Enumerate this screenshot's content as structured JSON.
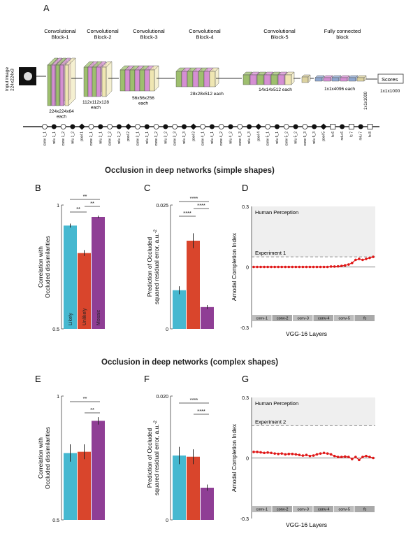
{
  "panel_a": {
    "letter": "A",
    "input_label": "Input image",
    "input_size": "224x224x3",
    "blocks": [
      {
        "title": "Convolutional\nBlock-1",
        "dims": "224x224x64\neach"
      },
      {
        "title": "Convolutional\nBlock-2",
        "dims": "112x112x128\neach"
      },
      {
        "title": "Convolutional\nBlock-3",
        "dims": "56x56x256\neach"
      },
      {
        "title": "Convolutional\nBlock-4",
        "dims": "28x28x512 each"
      },
      {
        "title": "Convolutional\nBlock-5",
        "dims": "14x14x512 each"
      },
      {
        "title": "Fully connected\nblock",
        "dims": "1x1x4096 each"
      }
    ],
    "fc_extra": "1x1x1000",
    "scores_label": "Scores",
    "scores_dims": "1x1x1000",
    "layers": [
      "conv 1_1",
      "relu 1_1",
      "conv 1_2",
      "relu 1_2",
      "pool 1",
      "conv 2_1",
      "relu 2_1",
      "conv 2_2",
      "relu 2_2",
      "pool 2",
      "conv 3_1",
      "relu 3_1",
      "conv 3_2",
      "relu 3_2",
      "conv 3_3",
      "relu 3_3",
      "pool 3",
      "conv 4_1",
      "relu 4_1",
      "conv 4_2",
      "relu 4_2",
      "conv 4_3",
      "relu 4_3",
      "pool 4",
      "conv 5_1",
      "relu 5_1",
      "conv 5_2",
      "relu 5_2",
      "conv 5_3",
      "relu 5_3",
      "pool 5",
      "fc 6",
      "relu 6",
      "fc 7",
      "relu 7",
      "fc 8"
    ],
    "colors": {
      "conv": "#9ebf6e",
      "relu": "#d58fd3",
      "pool": "#efe6b2",
      "fc": "#8fa7cf",
      "dense": "#dcd2a0"
    }
  },
  "titles": {
    "simple": "Occlusion in deep networks (simple shapes)",
    "complex": "Occlusion in deep networks (complex shapes)"
  },
  "colors": {
    "likely": "#46b8d0",
    "unlikely": "#d9452c",
    "mosaic": "#8f3e95",
    "vgg": "#e01818",
    "band": "#efefef"
  },
  "chart_data": [
    {
      "panel": "B",
      "type": "bar",
      "categories": [
        "Likely",
        "Unlikely",
        "Mosaic"
      ],
      "values": [
        0.917,
        0.806,
        0.952
      ],
      "errors": [
        0.008,
        0.012,
        0.005
      ],
      "ylabel": "Correlation with\nOccluded dissimilarities",
      "ylim": [
        0.5,
        1
      ],
      "yticks": [
        "0.5",
        "1"
      ],
      "significance": [
        "**",
        "**",
        "**"
      ]
    },
    {
      "panel": "C",
      "type": "bar",
      "categories": [
        "Likely",
        "Unlikely",
        "Mosaic"
      ],
      "values": [
        0.0078,
        0.0178,
        0.0044
      ],
      "errors": [
        0.0008,
        0.0015,
        0.0004
      ],
      "ylabel": "Prediction of Occluded\nsquared residual error, a.u.",
      "ylabel_exp": "-2",
      "ylim": [
        0,
        0.025
      ],
      "yticks": [
        "0",
        "0.025"
      ],
      "significance": [
        "****",
        "****",
        "****"
      ]
    },
    {
      "panel": "D",
      "type": "line",
      "ylabel": "Amodal Completion Index",
      "xlabel": "VGG-16 Layers",
      "ylim": [
        -0.3,
        0.3
      ],
      "yticks": [
        "-0.3",
        "0",
        "0.3"
      ],
      "band_label": "Human Perception",
      "experiment_label": "Experiment 1",
      "experiment_value": 0.05,
      "series": [
        {
          "values": [
            0,
            0,
            0,
            0,
            0,
            0,
            0,
            0,
            0,
            0,
            0,
            0,
            0,
            0,
            0,
            0,
            0,
            0,
            0,
            0,
            0,
            0,
            0.002,
            0.002,
            0.003,
            0.005,
            0.008,
            0.012,
            0.02,
            0.035,
            0.04,
            0.035,
            0.04,
            0.045,
            0.05
          ]
        }
      ],
      "layer_groups": [
        "conv-1",
        "conv-2",
        "conv-3",
        "conv-4",
        "conv-5",
        "fc"
      ]
    },
    {
      "panel": "E",
      "type": "bar",
      "categories": [
        "Likely",
        "Unlikely",
        "Mosaic"
      ],
      "values": [
        0.77,
        0.775,
        0.9
      ],
      "errors": [
        0.035,
        0.03,
        0.015
      ],
      "ylabel": "Correlation with\nOccluded dissimilarities",
      "ylim": [
        0.5,
        1
      ],
      "yticks": [
        "0.5",
        "1"
      ],
      "significance": [
        "**",
        "**"
      ]
    },
    {
      "panel": "F",
      "type": "bar",
      "categories": [
        "Likely",
        "Unlikely",
        "Mosaic"
      ],
      "values": [
        0.0104,
        0.0102,
        0.0052
      ],
      "errors": [
        0.0014,
        0.0012,
        0.0005
      ],
      "ylabel": "Prediction of Occluded\nsquared residual error, a.u.",
      "ylabel_exp": "-2",
      "ylim": [
        0,
        0.02
      ],
      "yticks": [
        "0",
        "0.020"
      ],
      "significance": [
        "****",
        "****"
      ]
    },
    {
      "panel": "G",
      "type": "line",
      "ylabel": "Amodal Completion Index",
      "xlabel": "VGG-16 Layers",
      "ylim": [
        -0.3,
        0.3
      ],
      "yticks": [
        "-0.3",
        "0",
        "0.3"
      ],
      "band_label": "Human Perception",
      "experiment_label": "Experiment 2",
      "experiment_value": 0.16,
      "series": [
        {
          "values": [
            0.03,
            0.03,
            0.028,
            0.025,
            0.027,
            0.025,
            0.022,
            0.02,
            0.022,
            0.018,
            0.02,
            0.02,
            0.018,
            0.015,
            0.012,
            0.015,
            0.01,
            0.012,
            0.018,
            0.022,
            0.025,
            0.022,
            0.018,
            0.01,
            0.005,
            0.005,
            0.007,
            0.005,
            -0.005,
            0.005,
            -0.01,
            0.005,
            0.01,
            0.005,
            0.0
          ]
        }
      ],
      "layer_groups": [
        "conv-1",
        "conv-2",
        "conv-3",
        "conv-4",
        "conv-5",
        "fc"
      ]
    }
  ]
}
